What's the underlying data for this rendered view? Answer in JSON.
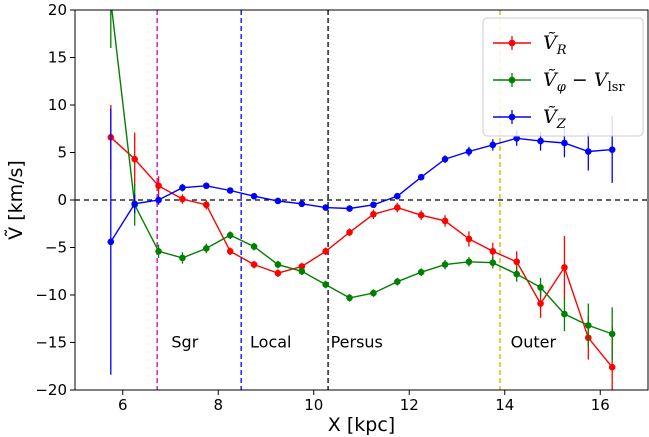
{
  "chart_data": {
    "type": "line",
    "xlabel": "X [kpc]",
    "ylabel": "Ṽ [km/s]",
    "xlim": [
      5.0,
      17.0
    ],
    "ylim": [
      -20,
      20
    ],
    "xticks": [
      6,
      8,
      10,
      12,
      14,
      16
    ],
    "yticks": [
      -20,
      -15,
      -10,
      -5,
      0,
      5,
      10,
      15,
      20
    ],
    "legend_position": "top-right",
    "zero_line": {
      "y": 0,
      "color": "#000000",
      "style": "dashed"
    },
    "vlines": [
      {
        "x": 6.72,
        "color": "#c000c0"
      },
      {
        "x": 8.48,
        "color": "#0000ff"
      },
      {
        "x": 10.3,
        "color": "#000000"
      },
      {
        "x": 13.9,
        "color": "#d4b000"
      }
    ],
    "region_labels": [
      {
        "text": "Sgr",
        "x": 7.3,
        "y": -14.9
      },
      {
        "text": "Local",
        "x": 9.1,
        "y": -14.9
      },
      {
        "text": "Persus",
        "x": 10.9,
        "y": -14.9
      },
      {
        "text": "Outer",
        "x": 14.6,
        "y": -14.9
      }
    ],
    "series": [
      {
        "name": "Ṽ_R",
        "legend": {
          "base": "Ṽ",
          "sub": "R",
          "suffix": "",
          "suffix_sub": ""
        },
        "color": "#ff0000",
        "x": [
          5.75,
          6.25,
          6.75,
          7.25,
          7.75,
          8.25,
          8.75,
          9.25,
          9.75,
          10.25,
          10.75,
          11.25,
          11.75,
          12.25,
          12.75,
          13.25,
          13.75,
          14.25,
          14.75,
          15.25,
          15.75,
          16.25
        ],
        "y": [
          6.6,
          4.3,
          1.5,
          0.1,
          -0.5,
          -5.4,
          -6.8,
          -7.7,
          -7.0,
          -5.4,
          -3.4,
          -1.5,
          -0.8,
          -1.6,
          -2.2,
          -4.1,
          -5.4,
          -6.5,
          -10.9,
          -7.1,
          -14.5,
          -17.6
        ],
        "err": [
          3.4,
          2.8,
          1.0,
          0.5,
          0.5,
          0.4,
          0.4,
          0.4,
          0.4,
          0.4,
          0.4,
          0.5,
          0.5,
          0.5,
          0.6,
          0.8,
          0.9,
          1.1,
          1.5,
          3.3,
          2.3,
          4.3
        ]
      },
      {
        "name": "Ṽ_φ − V_lsr",
        "legend": {
          "base": "Ṽ",
          "sub": "φ",
          "suffix": " − V",
          "suffix_sub": "lsr"
        },
        "color": "#008000",
        "x": [
          5.75,
          6.25,
          6.75,
          7.25,
          7.75,
          8.25,
          8.75,
          9.25,
          9.75,
          10.25,
          10.75,
          11.25,
          11.75,
          12.25,
          12.75,
          13.25,
          13.75,
          14.25,
          14.75,
          15.25,
          15.75,
          16.25
        ],
        "y": [
          21.0,
          -0.5,
          -5.4,
          -6.1,
          -5.1,
          -3.7,
          -4.9,
          -6.8,
          -7.5,
          -8.9,
          -10.3,
          -9.8,
          -8.6,
          -7.6,
          -6.8,
          -6.5,
          -6.6,
          -7.8,
          -9.2,
          -12.0,
          -13.2,
          -14.1
        ],
        "err": [
          5.0,
          2.2,
          0.7,
          0.6,
          0.5,
          0.4,
          0.4,
          0.4,
          0.4,
          0.4,
          0.4,
          0.4,
          0.4,
          0.4,
          0.5,
          0.5,
          0.6,
          0.8,
          1.0,
          1.8,
          2.3,
          2.8
        ]
      },
      {
        "name": "Ṽ_Z",
        "legend": {
          "base": "Ṽ",
          "sub": "Z",
          "suffix": "",
          "suffix_sub": ""
        },
        "color": "#0000ff",
        "x": [
          5.75,
          6.25,
          6.75,
          7.25,
          7.75,
          8.25,
          8.75,
          9.25,
          9.75,
          10.25,
          10.75,
          11.25,
          11.75,
          12.25,
          12.75,
          13.25,
          13.75,
          14.25,
          14.75,
          15.25,
          15.75,
          16.25
        ],
        "y": [
          -4.4,
          -0.4,
          0.0,
          1.3,
          1.5,
          1.0,
          0.4,
          -0.1,
          -0.4,
          -0.8,
          -0.9,
          -0.5,
          0.4,
          2.4,
          4.3,
          5.1,
          5.8,
          6.5,
          6.2,
          6.0,
          5.1,
          5.3
        ],
        "err": [
          14.0,
          1.0,
          0.5,
          0.4,
          0.3,
          0.3,
          0.3,
          0.3,
          0.3,
          0.3,
          0.3,
          0.3,
          0.3,
          0.3,
          0.4,
          0.5,
          0.6,
          0.8,
          1.0,
          1.5,
          2.0,
          3.5
        ]
      }
    ]
  }
}
